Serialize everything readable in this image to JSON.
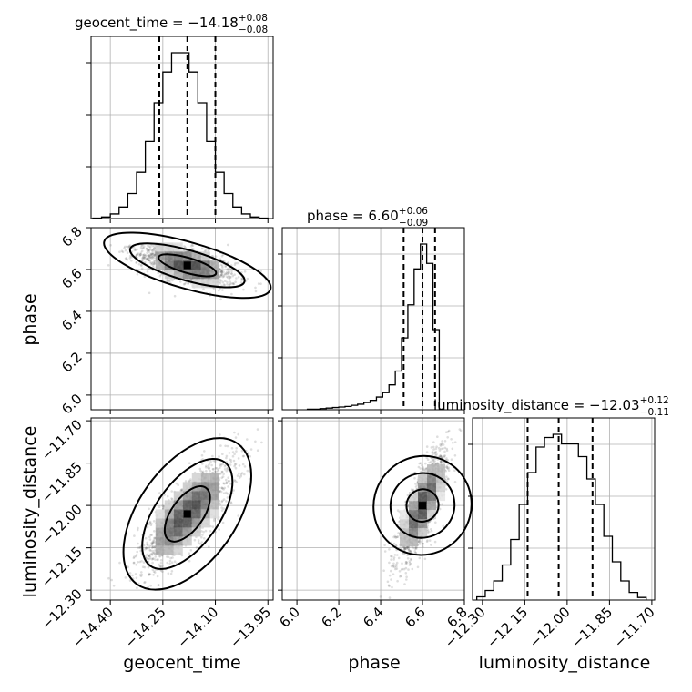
{
  "chart_data": {
    "type": "corner",
    "parameters": [
      "geocent_time",
      "phase",
      "luminosity_distance"
    ],
    "axis_labels": {
      "geocent_time": "geocent_time",
      "phase": "phase",
      "luminosity_distance": "luminosity_distance"
    },
    "ranges": {
      "geocent_time": [
        -14.455,
        -13.935
      ],
      "phase": [
        5.93,
        6.8
      ],
      "luminosity_distance": [
        -12.335,
        -11.69
      ]
    },
    "ticks": {
      "geocent_time": [
        -14.4,
        -14.25,
        -14.1,
        -13.95
      ],
      "phase": [
        6.0,
        6.2,
        6.4,
        6.6,
        6.8
      ],
      "luminosity_distance": [
        -12.3,
        -12.15,
        -12.0,
        -11.85,
        -11.7
      ]
    },
    "tick_labels": {
      "geocent_time": [
        "−14.40",
        "−14.25",
        "−14.10",
        "−13.95"
      ],
      "phase": [
        "6.0",
        "6.2",
        "6.4",
        "6.6",
        "6.8"
      ],
      "luminosity_distance": [
        "−12.30",
        "−12.15",
        "−12.00",
        "−11.85",
        "−11.70"
      ]
    },
    "titles": [
      {
        "parameter": "geocent_time",
        "text": "geocent_time = −14.18",
        "upper": "+0.08",
        "lower": "−0.08"
      },
      {
        "parameter": "phase",
        "text": "phase = 6.60",
        "upper": "+0.06",
        "lower": "−0.09"
      },
      {
        "parameter": "luminosity_distance",
        "text": "luminosity_distance = −12.03",
        "upper": "+0.12",
        "lower": "−0.11"
      }
    ],
    "quantiles": {
      "geocent_time": [
        -14.26,
        -14.18,
        -14.1
      ],
      "phase": [
        6.51,
        6.6,
        6.66
      ],
      "luminosity_distance": [
        -12.14,
        -12.03,
        -11.91
      ]
    },
    "histograms": {
      "geocent_time": {
        "edges": [
          -14.45,
          -14.425,
          -14.4,
          -14.375,
          -14.35,
          -14.325,
          -14.3,
          -14.275,
          -14.25,
          -14.225,
          -14.2,
          -14.175,
          -14.15,
          -14.125,
          -14.1,
          -14.075,
          -14.05,
          -14.025,
          -14.0,
          -13.975,
          -13.95
        ],
        "counts": [
          1,
          4,
          12,
          30,
          65,
          120,
          200,
          300,
          380,
          430,
          430,
          380,
          300,
          200,
          120,
          65,
          30,
          12,
          4,
          1
        ]
      },
      "phase": {
        "edges": [
          6.05,
          6.08,
          6.11,
          6.14,
          6.17,
          6.2,
          6.23,
          6.26,
          6.29,
          6.32,
          6.35,
          6.38,
          6.41,
          6.44,
          6.47,
          6.5,
          6.53,
          6.56,
          6.59,
          6.62,
          6.65,
          6.68
        ],
        "counts": [
          1,
          1,
          2,
          3,
          4,
          5,
          6,
          8,
          10,
          13,
          17,
          23,
          31,
          45,
          70,
          130,
          190,
          255,
          300,
          265,
          145
        ]
      },
      "luminosity_distance": {
        "edges": [
          -12.32,
          -12.29,
          -12.26,
          -12.23,
          -12.2,
          -12.17,
          -12.14,
          -12.11,
          -12.08,
          -12.05,
          -12.02,
          -11.99,
          -11.96,
          -11.93,
          -11.9,
          -11.87,
          -11.84,
          -11.81,
          -11.78,
          -11.75,
          -11.72
        ],
        "counts": [
          5,
          15,
          30,
          55,
          95,
          150,
          200,
          240,
          255,
          260,
          245,
          245,
          225,
          190,
          150,
          100,
          60,
          30,
          12,
          4
        ]
      }
    },
    "pairs": [
      {
        "x": "geocent_time",
        "y": "phase",
        "center": [
          -14.18,
          6.62
        ],
        "spread": [
          0.07,
          0.05
        ],
        "levels": [
          0.39,
          0.86,
          0.99
        ]
      },
      {
        "x": "geocent_time",
        "y": "luminosity_distance",
        "center": [
          -14.18,
          -12.03
        ],
        "spread": [
          0.07,
          0.1
        ],
        "levels": [
          0.39,
          0.86,
          0.99
        ]
      },
      {
        "x": "phase",
        "y": "luminosity_distance",
        "center": [
          6.6,
          -12.0
        ],
        "spread": [
          0.06,
          0.1
        ],
        "levels": [
          0.39,
          0.86,
          0.99
        ]
      }
    ]
  }
}
